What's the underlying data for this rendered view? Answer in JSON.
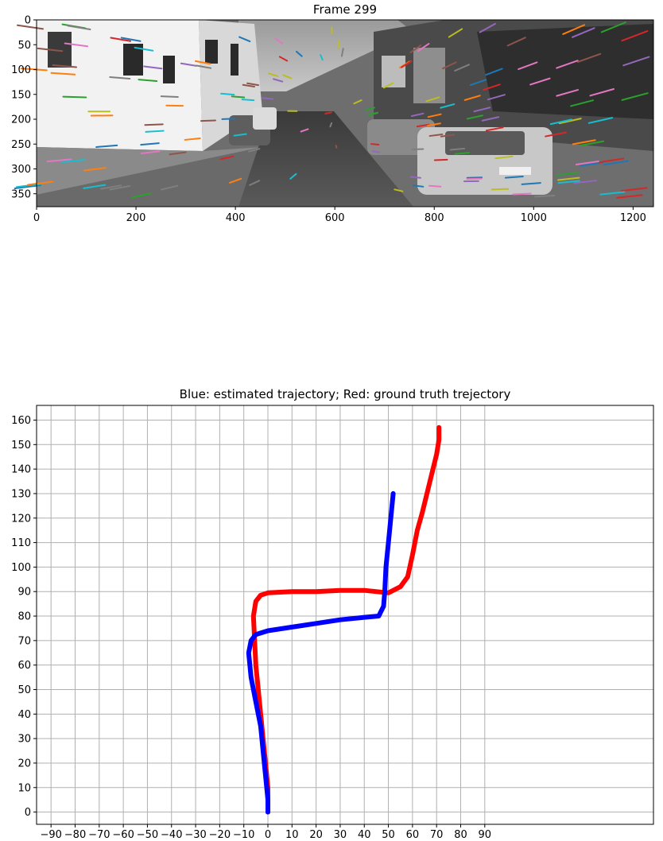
{
  "frame_panel": {
    "title": "Frame 299",
    "x_ticks": [
      0,
      200,
      400,
      600,
      800,
      1000,
      1200
    ],
    "y_ticks": [
      0,
      50,
      100,
      150,
      200,
      250,
      300,
      350
    ],
    "xlim": [
      0,
      1241
    ],
    "ylim": [
      376,
      0
    ],
    "track_colors": [
      "#1f77b4",
      "#ff7f0e",
      "#2ca02c",
      "#d62728",
      "#9467bd",
      "#8c564b",
      "#e377c2",
      "#7f7f7f",
      "#bcbd22",
      "#17becf"
    ]
  },
  "chart_data": {
    "type": "line",
    "title": "Blue: estimated trajectory; Red: ground truth trejectory",
    "xlabel": "",
    "ylabel": "",
    "xlim": [
      -96,
      160
    ],
    "ylim": [
      -5,
      166
    ],
    "x_ticks": [
      -90,
      -80,
      -70,
      -60,
      -50,
      -40,
      -30,
      -20,
      -10,
      0,
      10,
      20,
      30,
      40,
      50,
      60,
      70,
      80,
      90
    ],
    "y_ticks": [
      0,
      10,
      20,
      30,
      40,
      50,
      60,
      70,
      80,
      90,
      100,
      110,
      120,
      130,
      140,
      150,
      160
    ],
    "grid": true,
    "series": [
      {
        "color": "#0000ff",
        "x": [
          0,
          0,
          -1,
          -2,
          -3,
          -5,
          -7,
          -8,
          -7,
          -5,
          0,
          10,
          20,
          30,
          40,
          46,
          48,
          48.5,
          49,
          50,
          51,
          52
        ],
        "y": [
          0,
          5,
          15,
          25,
          35,
          45,
          55,
          65,
          70,
          72.5,
          74,
          75.5,
          77,
          78.5,
          79.5,
          80,
          84,
          90,
          100,
          110,
          120,
          130
        ]
      },
      {
        "color": "#ff0000",
        "x": [
          0,
          0,
          -1,
          -2,
          -3,
          -4,
          -5,
          -6,
          -5,
          -3,
          0,
          10,
          20,
          30,
          40,
          50,
          55,
          58,
          60,
          62,
          64,
          66,
          68,
          70,
          71,
          71
        ],
        "y": [
          0,
          10,
          20,
          30,
          40,
          50,
          60,
          80,
          86,
          88.5,
          89.5,
          90,
          90,
          90.5,
          90.5,
          89.5,
          92,
          96,
          105,
          115,
          122,
          130,
          138,
          146,
          152,
          157
        ]
      }
    ]
  }
}
